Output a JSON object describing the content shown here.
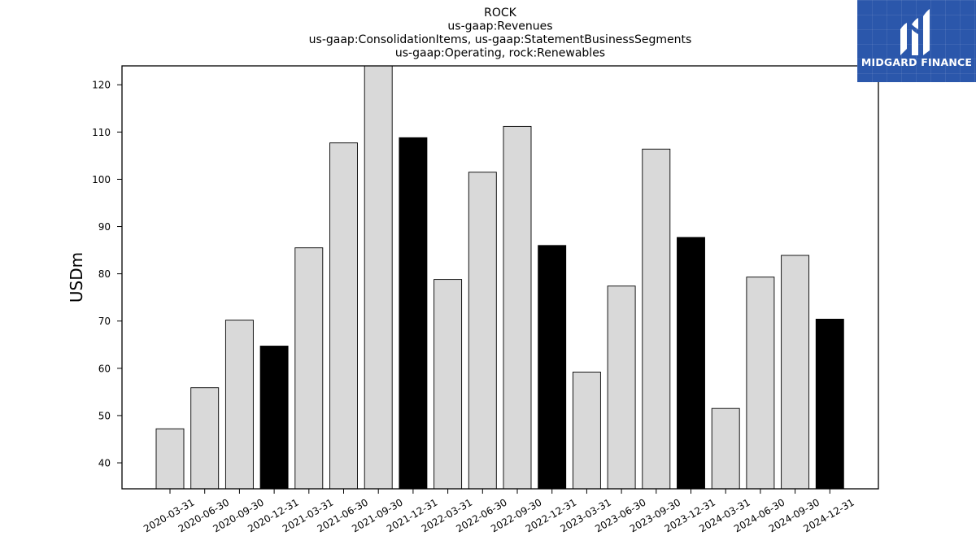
{
  "chart_data": {
    "type": "bar",
    "title_lines": [
      "ROCK",
      "us-gaap:Revenues",
      "us-gaap:ConsolidationItems, us-gaap:StatementBusinessSegments",
      "us-gaap:Operating, rock:Renewables"
    ],
    "xlabel": "",
    "ylabel": "USDm",
    "ylim": [
      34.5,
      124
    ],
    "yticks": [
      40,
      50,
      60,
      70,
      80,
      90,
      100,
      110,
      120
    ],
    "grid": false,
    "categories": [
      "2020-03-31",
      "2020-06-30",
      "2020-09-30",
      "2020-12-31",
      "2021-03-31",
      "2021-06-30",
      "2021-09-30",
      "2021-12-31",
      "2022-03-31",
      "2022-06-30",
      "2022-09-30",
      "2022-12-31",
      "2023-03-31",
      "2023-06-30",
      "2023-09-30",
      "2023-12-31",
      "2024-03-31",
      "2024-06-30",
      "2024-09-30",
      "2024-12-31"
    ],
    "values": [
      47.2,
      55.9,
      70.2,
      64.7,
      85.5,
      107.7,
      124.0,
      108.8,
      78.8,
      101.5,
      111.2,
      86.0,
      59.2,
      77.4,
      106.4,
      87.7,
      51.5,
      79.3,
      83.9,
      70.4
    ],
    "colors": {
      "quarter": "#d9d9d9",
      "year_end": "#000000",
      "edge": "#000000"
    }
  },
  "logo": {
    "text": "MIDGARD FINANCE",
    "background": "#2b57ab"
  }
}
